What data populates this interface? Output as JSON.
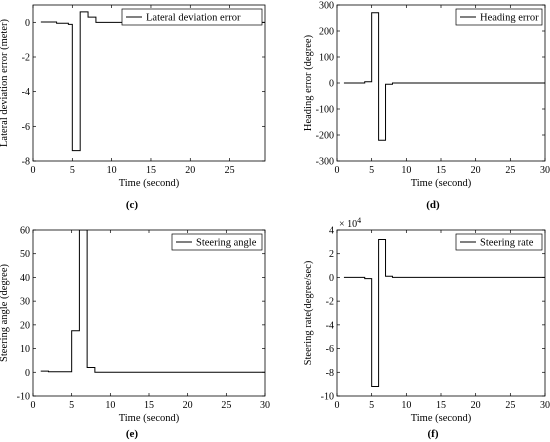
{
  "chart_data": [
    {
      "type": "line",
      "panel": "c",
      "caption": "(c)",
      "xlabel": "Time (second)",
      "ylabel": "Lateral deviation error (meter)",
      "xlim": [
        0,
        29.5
      ],
      "ylim": [
        -8,
        1
      ],
      "xticks": [
        0,
        5,
        10,
        15,
        20,
        25
      ],
      "yticks": [
        0,
        -2,
        -4,
        -6,
        -8
      ],
      "exponent_label": "",
      "legend_position": "top-right",
      "series": [
        {
          "name": "Lateral deviation error",
          "x": [
            1,
            3,
            3,
            4.5,
            4.5,
            5,
            5,
            6,
            6,
            7,
            7,
            8,
            8,
            29.5
          ],
          "y": [
            0.02,
            0.02,
            -0.05,
            -0.05,
            -0.12,
            -0.12,
            -7.4,
            -7.4,
            0.6,
            0.6,
            0.3,
            0.3,
            0,
            0
          ]
        }
      ]
    },
    {
      "type": "line",
      "panel": "d",
      "caption": "(d)",
      "xlabel": "Time (second)",
      "ylabel": "Heading error (degree)",
      "xlim": [
        0,
        30
      ],
      "ylim": [
        -300,
        300
      ],
      "xticks": [
        0,
        5,
        10,
        15,
        20,
        25,
        30
      ],
      "yticks": [
        300,
        200,
        100,
        0,
        -100,
        -200,
        -300
      ],
      "exponent_label": "",
      "legend_position": "top-right",
      "series": [
        {
          "name": "Heading error",
          "x": [
            1,
            4,
            4,
            5,
            5,
            6,
            6,
            7,
            7,
            8,
            8,
            30
          ],
          "y": [
            0,
            0,
            5,
            5,
            270,
            270,
            -220,
            -220,
            -5,
            -5,
            0,
            0
          ]
        }
      ]
    },
    {
      "type": "line",
      "panel": "e",
      "caption": "(e)",
      "xlabel": "Time (second)",
      "ylabel": "Steering angle (degree)",
      "xlim": [
        0,
        30
      ],
      "ylim": [
        -10,
        60
      ],
      "xticks": [
        0,
        5,
        10,
        15,
        20,
        25,
        30
      ],
      "yticks": [
        60,
        50,
        40,
        30,
        20,
        10,
        0,
        -10
      ],
      "exponent_label": "",
      "legend_position": "top-right",
      "series": [
        {
          "name": "Steering angle",
          "x": [
            1,
            2,
            2,
            5,
            5,
            6,
            6,
            7,
            7,
            8,
            8,
            30
          ],
          "y": [
            0.5,
            0.5,
            0.2,
            0.2,
            17.5,
            17.5,
            60,
            60,
            2,
            2,
            0,
            0
          ]
        }
      ]
    },
    {
      "type": "line",
      "panel": "f",
      "caption": "(f)",
      "xlabel": "Time (second)",
      "ylabel": "Steering rate(degree/sec)",
      "xlim": [
        0,
        30
      ],
      "ylim": [
        -10,
        4
      ],
      "xticks": [
        0,
        5,
        10,
        15,
        20,
        25,
        30
      ],
      "yticks": [
        4,
        2,
        0,
        -2,
        -4,
        -6,
        -8,
        -10
      ],
      "exponent_label": "× 10",
      "exponent_power": "4",
      "legend_position": "top-right",
      "series": [
        {
          "name": "Steering rate",
          "x": [
            1,
            4,
            4,
            5,
            5,
            6,
            6,
            7,
            7,
            8,
            8,
            30
          ],
          "y": [
            0,
            0,
            -0.1,
            -0.1,
            -9.2,
            -9.2,
            3.2,
            3.2,
            0.1,
            0.1,
            0,
            0
          ]
        }
      ]
    }
  ]
}
